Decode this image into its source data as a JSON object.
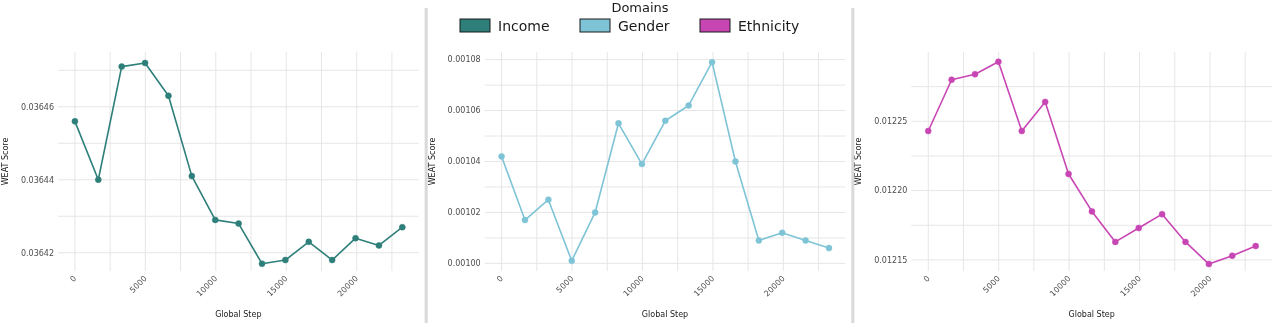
{
  "chart_data": [
    {
      "type": "line",
      "xlabel": "Global Step",
      "ylabel": "WEAT Score",
      "x": [
        0,
        1660,
        3320,
        4980,
        6640,
        8300,
        9960,
        11620,
        13280,
        14940,
        16600,
        18260,
        19920,
        21580,
        23240
      ],
      "series": [
        {
          "name": "Income",
          "color": "#2e7f7a",
          "values": [
            0.036456,
            0.03644,
            0.036471,
            0.036472,
            0.036463,
            0.036441,
            0.036429,
            0.036428,
            0.036417,
            0.036418,
            0.036423,
            0.036418,
            0.036424,
            0.036422,
            0.036427
          ]
        }
      ],
      "xlim": [
        -1200,
        24400
      ],
      "xticks": [
        0,
        {
          "value": 2500,
          "label": null
        },
        5000,
        {
          "value": 7500,
          "label": null
        },
        10000,
        {
          "value": 12500,
          "label": null
        },
        15000,
        {
          "value": 17500,
          "label": null
        },
        20000,
        {
          "value": 22500,
          "label": null
        }
      ],
      "ylim": [
        0.036415,
        0.036475
      ],
      "yticks": [
        0.03642,
        {
          "value": 0.03643,
          "label": null
        },
        0.03644,
        {
          "value": 0.03645,
          "label": null
        },
        0.03646,
        {
          "value": 0.03647,
          "label": null
        }
      ],
      "grid": true,
      "marker": "circle",
      "legend": "top"
    },
    {
      "type": "line",
      "xlabel": "Global Step",
      "ylabel": "WEAT Score",
      "legend_title": "Domains",
      "x": [
        0,
        1660,
        3320,
        4980,
        6640,
        8300,
        9960,
        11620,
        13280,
        14940,
        16600,
        18260,
        19920,
        21580,
        23240
      ],
      "series": [
        {
          "name": "Gender",
          "color": "#7ec4d6",
          "values": [
            0.001042,
            0.001017,
            0.001025,
            0.001001,
            0.00102,
            0.001055,
            0.001039,
            0.001056,
            0.001062,
            0.001079,
            0.00104,
            0.001009,
            0.001012,
            0.001009,
            0.001006
          ]
        }
      ],
      "xlim": [
        -1200,
        24400
      ],
      "xticks": [
        0,
        {
          "value": 2500,
          "label": null
        },
        5000,
        {
          "value": 7500,
          "label": null
        },
        10000,
        {
          "value": 12500,
          "label": null
        },
        15000,
        {
          "value": 17500,
          "label": null
        },
        20000,
        {
          "value": 22500,
          "label": null
        }
      ],
      "ylim": [
        0.000997,
        0.001083
      ],
      "yticks": [
        {
          "value": 0.001,
          "label": "0.00100"
        },
        {
          "value": 0.00101,
          "label": null
        },
        0.00102,
        {
          "value": 0.00103,
          "label": null
        },
        0.00104,
        {
          "value": 0.00105,
          "label": null
        },
        0.00106,
        {
          "value": 0.00107,
          "label": null
        },
        0.00108
      ],
      "grid": true,
      "marker": "circle",
      "legend": "top"
    },
    {
      "type": "line",
      "xlabel": "Global Step",
      "ylabel": "WEAT Score",
      "x": [
        0,
        1660,
        3320,
        4980,
        6640,
        8300,
        9960,
        11620,
        13280,
        14940,
        16600,
        18260,
        19920,
        21580,
        23240
      ],
      "series": [
        {
          "name": "Ethnicity",
          "color": "#c846b4",
          "values": [
            0.012243,
            0.01228,
            0.012284,
            0.012293,
            0.012243,
            0.012264,
            0.012212,
            0.012185,
            0.012163,
            0.012173,
            0.012183,
            0.012163,
            0.012147,
            0.012153,
            0.01216
          ]
        }
      ],
      "xlim": [
        -1200,
        24400
      ],
      "xticks": [
        0,
        {
          "value": 2500,
          "label": null
        },
        5000,
        {
          "value": 7500,
          "label": null
        },
        10000,
        {
          "value": 12500,
          "label": null
        },
        15000,
        {
          "value": 17500,
          "label": null
        },
        20000,
        {
          "value": 22500,
          "label": null
        }
      ],
      "ylim": [
        0.012142,
        0.0123
      ],
      "yticks": [
        0.01215,
        {
          "value": 0.012175,
          "label": null
        },
        {
          "value": 0.0122,
          "label": "0.01220"
        },
        {
          "value": 0.012225,
          "label": null
        },
        0.01225,
        {
          "value": 0.012275,
          "label": null
        }
      ],
      "grid": true,
      "marker": "circle",
      "legend": "top"
    }
  ]
}
